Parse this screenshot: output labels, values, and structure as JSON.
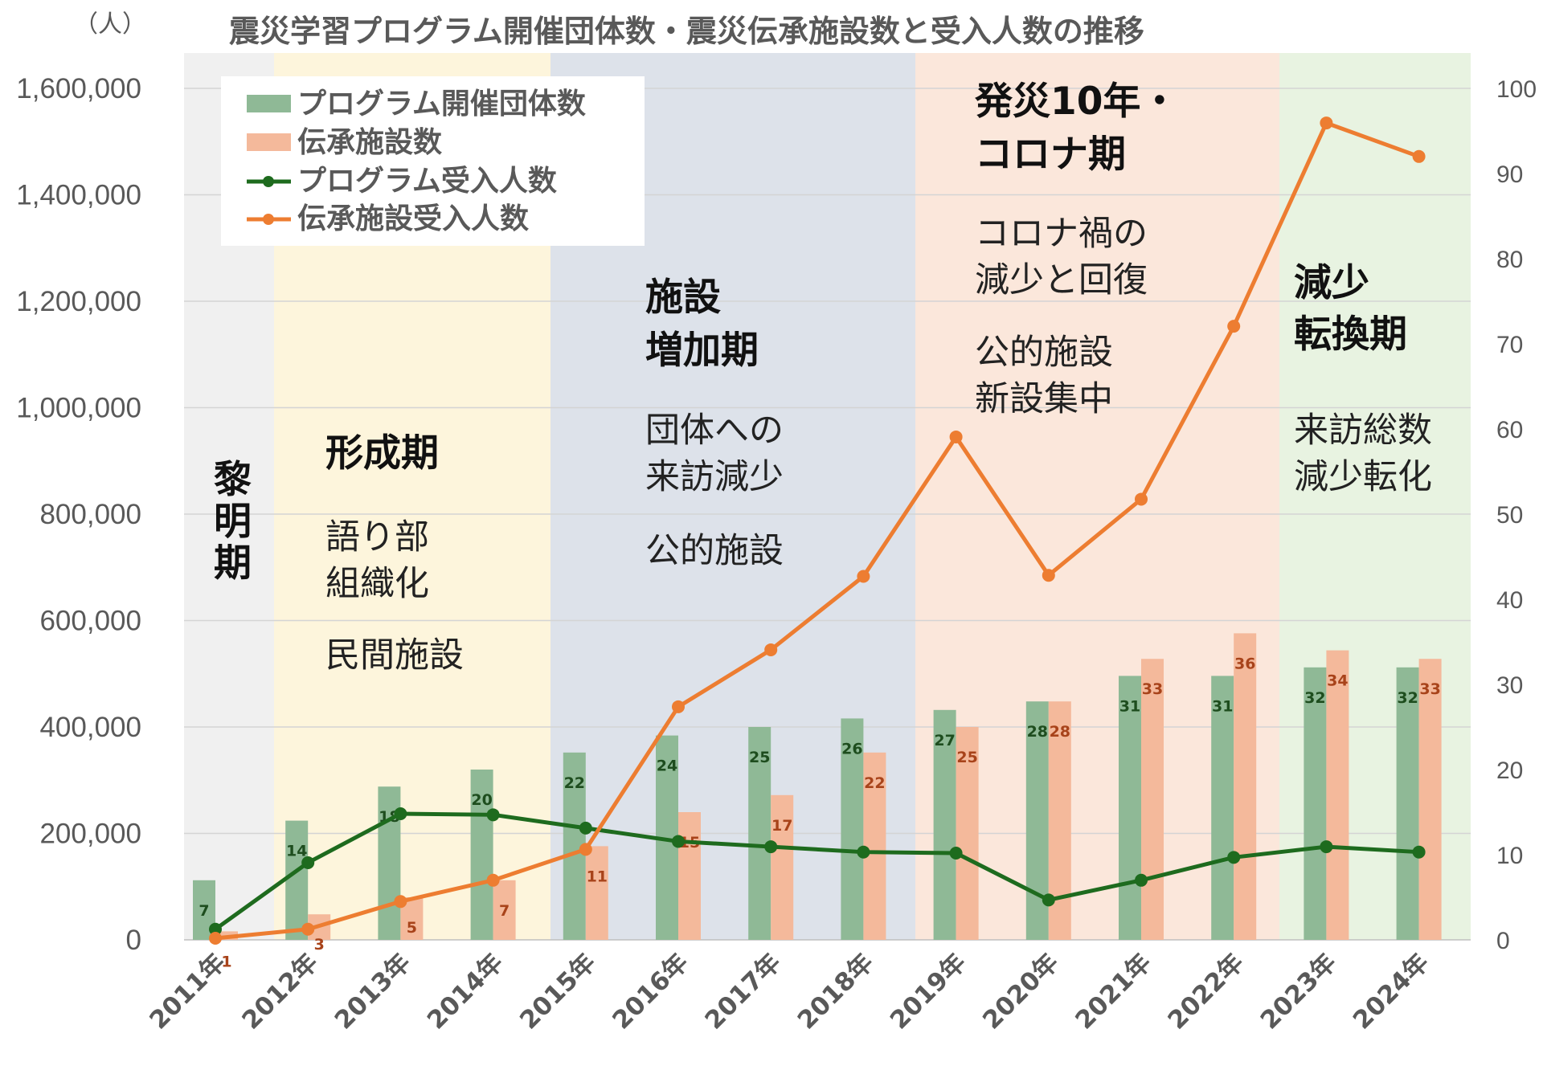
{
  "chart_data": {
    "type": "bar+line",
    "title": "震災学習プログラム開催団体数・震災伝承施設数と受入人数の推移",
    "ylabel": "（人）",
    "ylim": [
      0,
      1600000
    ],
    "y2lim": [
      0,
      100
    ],
    "yticks": [
      "0",
      "200,000",
      "400,000",
      "600,000",
      "800,000",
      "1,000,000",
      "1,200,000",
      "1,400,000",
      "1,600,000"
    ],
    "y2ticks": [
      "0",
      "10",
      "20",
      "30",
      "40",
      "50",
      "60",
      "70",
      "80",
      "90",
      "100"
    ],
    "categories": [
      "2011年",
      "2012年",
      "2013年",
      "2014年",
      "2015年",
      "2016年",
      "2017年",
      "2018年",
      "2019年",
      "2020年",
      "2021年",
      "2022年",
      "2023年",
      "2024年"
    ],
    "series": [
      {
        "name": "プログラム開催団体数",
        "kind": "bar",
        "axis": "right",
        "color": "#8fb996",
        "values": [
          7,
          14,
          18,
          20,
          22,
          24,
          25,
          26,
          27,
          28,
          31,
          31,
          32,
          32
        ]
      },
      {
        "name": "伝承施設数",
        "kind": "bar",
        "axis": "right",
        "color": "#f4b99b",
        "values": [
          1,
          3,
          5,
          7,
          11,
          15,
          17,
          22,
          25,
          28,
          33,
          36,
          34,
          33
        ]
      },
      {
        "name": "プログラム受入人数",
        "kind": "line",
        "axis": "left",
        "color": "#1e6b1e",
        "values": [
          20000,
          145000,
          237000,
          235000,
          210000,
          185000,
          175000,
          165000,
          163000,
          75000,
          112000,
          155000,
          175000,
          165000
        ]
      },
      {
        "name": "伝承施設受入人数",
        "kind": "line",
        "axis": "left",
        "color": "#ed7d31",
        "values": [
          3000,
          20000,
          72000,
          112000,
          170000,
          438000,
          545000,
          683000,
          945000,
          685000,
          828000,
          1153000,
          1535000,
          1472000
        ]
      }
    ],
    "phases": [
      {
        "title": "黎明期",
        "text": [],
        "color": "#f0f0f0"
      },
      {
        "title": "形成期",
        "text": [
          "語り部",
          "組織化",
          "民間施設"
        ],
        "color": "#fdf5dc"
      },
      {
        "title": "施設増加期",
        "text": [
          "団体への",
          "来訪減少",
          "公的施設"
        ],
        "color": "#dde2ea"
      },
      {
        "title": "発災10年・コロナ期",
        "text": [
          "コロナ禍の",
          "減少と回復",
          "公的施設",
          "新設集中"
        ],
        "color": "#fbe7db"
      },
      {
        "title": "減少転換期",
        "text": [
          "来訪総数",
          "減少転化"
        ],
        "color": "#e8f3e1"
      }
    ]
  },
  "phase_labels": {
    "reimei": [
      "黎",
      "明",
      "期"
    ],
    "keisei": {
      "title": "形成期",
      "lines": [
        "語り部",
        "組織化",
        "民間施設"
      ]
    },
    "zoka": {
      "title": [
        "施設",
        "増加期"
      ],
      "lines": [
        "団体への",
        "来訪減少",
        "公的施設"
      ]
    },
    "corona": {
      "title": [
        "発災10年・",
        "コロナ期"
      ],
      "lines": [
        "コロナ禍の",
        "減少と回復",
        "公的施設",
        "新設集中"
      ]
    },
    "tenkan": {
      "title": [
        "減少",
        "転換期"
      ],
      "lines": [
        "来訪総数",
        "減少転化"
      ]
    }
  }
}
